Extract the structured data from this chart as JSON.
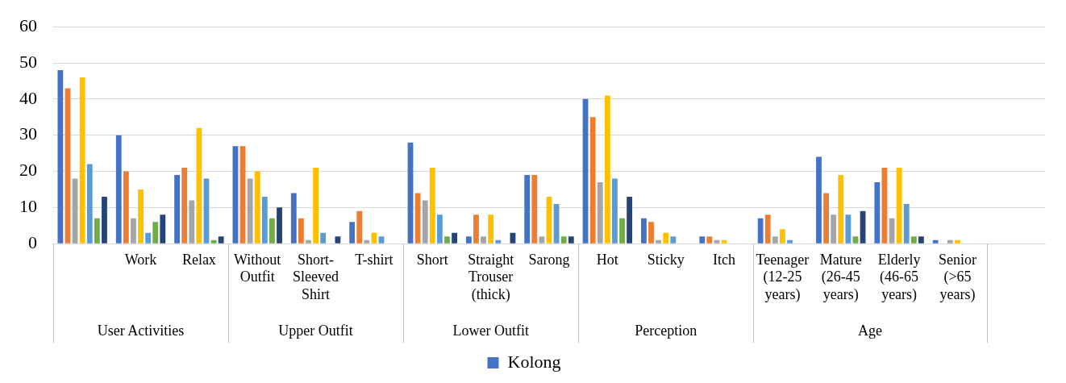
{
  "chart_data": {
    "type": "bar",
    "categories": [
      null,
      "Work",
      "Relax",
      "Without Outfit",
      "Short-Sleeved Shirt",
      "T-shirt",
      "Short",
      "Straight Trouser (thick)",
      "Sarong",
      "Hot",
      "Sticky",
      "Itch",
      "Teenager (12-25 years)",
      "Mature (26-45 years)",
      "Elderly (46-65 years)",
      "Senior (>65 years)",
      null
    ],
    "series": [
      {
        "name": "Kolong",
        "color": "#4472c4",
        "values": [
          48,
          30,
          19,
          27,
          14,
          6,
          28,
          2,
          19,
          40,
          7,
          2,
          7,
          24,
          17,
          1,
          null
        ]
      },
      {
        "color": "#ed7d31",
        "values": [
          43,
          20,
          21,
          27,
          7,
          9,
          14,
          8,
          19,
          35,
          6,
          2,
          8,
          14,
          21,
          null,
          null
        ]
      },
      {
        "color": "#a5a5a5",
        "values": [
          18,
          7,
          12,
          18,
          1,
          1,
          12,
          2,
          2,
          17,
          1,
          1,
          2,
          8,
          7,
          1,
          null
        ]
      },
      {
        "color": "#ffc000",
        "values": [
          46,
          15,
          32,
          20,
          21,
          3,
          21,
          8,
          13,
          41,
          3,
          1,
          4,
          19,
          21,
          1,
          null
        ]
      },
      {
        "color": "#5b9bd5",
        "values": [
          22,
          3,
          18,
          13,
          3,
          2,
          8,
          1,
          11,
          18,
          2,
          null,
          1,
          8,
          11,
          null,
          null
        ]
      },
      {
        "color": "#70ad47",
        "values": [
          7,
          6,
          1,
          7,
          null,
          null,
          2,
          null,
          2,
          7,
          null,
          null,
          null,
          2,
          2,
          null,
          null
        ]
      },
      {
        "color": "#264478",
        "values": [
          13,
          8,
          2,
          10,
          2,
          null,
          3,
          3,
          2,
          13,
          null,
          null,
          null,
          9,
          2,
          null,
          null
        ]
      }
    ],
    "annotations": [
      "User Activities",
      "Upper Outfit",
      "Lower Outfit",
      "Perception",
      "Age"
    ],
    "ylim": [
      0,
      60
    ],
    "yticks": [
      0,
      10,
      20,
      30,
      40,
      50,
      60
    ],
    "grid": "y",
    "legend": "bottom"
  }
}
